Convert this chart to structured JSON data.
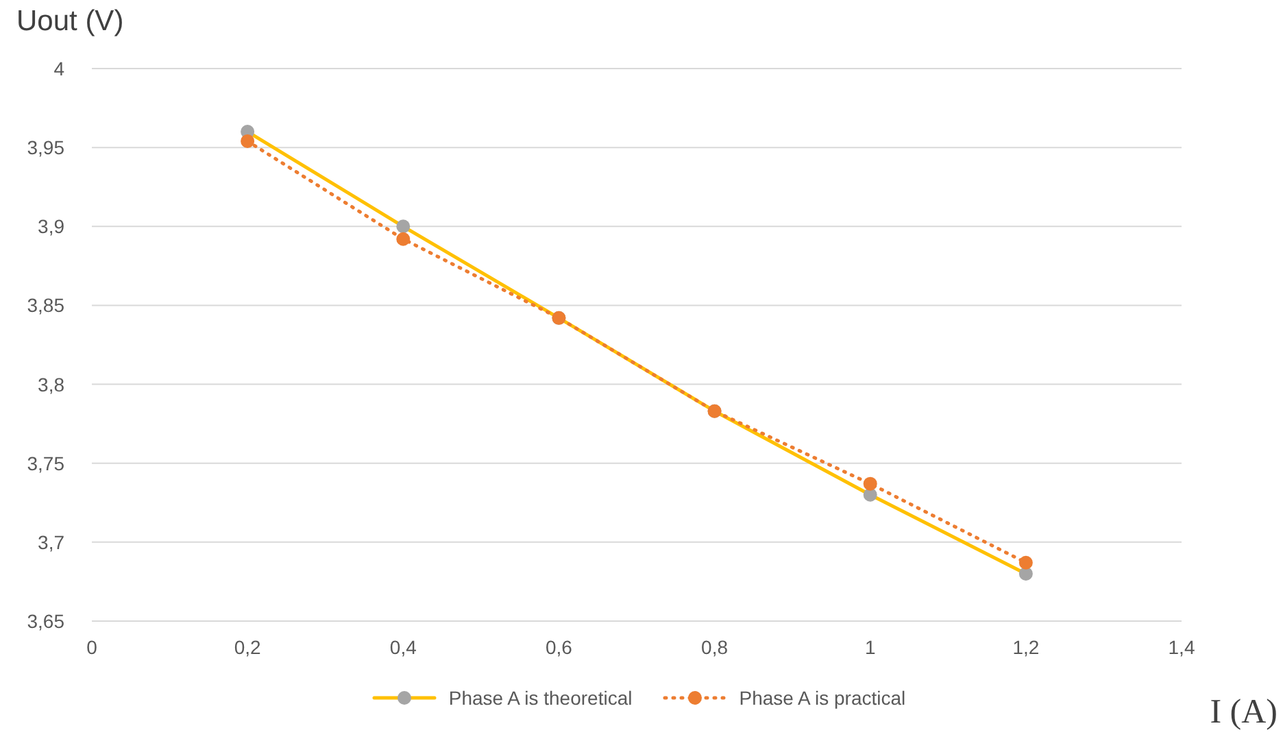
{
  "chart_data": {
    "type": "line",
    "ylabel": "Uout (V)",
    "xlabel": "I (A)",
    "x": [
      0.2,
      0.4,
      0.6,
      0.8,
      1,
      1.2
    ],
    "series": [
      {
        "name": "Phase A is theoretical",
        "color": "#ffc000",
        "line_style": "solid",
        "values": [
          3.96,
          3.9,
          3.842,
          3.783,
          3.73,
          3.68
        ]
      },
      {
        "name": "Phase A is practical",
        "color": "#ed7d31",
        "line_style": "dotted",
        "values": [
          3.954,
          3.892,
          3.842,
          3.783,
          3.737,
          3.687
        ]
      }
    ],
    "xlim": [
      0,
      1.4
    ],
    "xticks": [
      0,
      {
        "value": 0.2,
        "label": "0,2"
      },
      {
        "value": 0.4,
        "label": "0,4"
      },
      {
        "value": 0.6,
        "label": "0,6"
      },
      {
        "value": 0.8,
        "label": "0,8"
      },
      1,
      {
        "value": 1.2,
        "label": "1,2"
      },
      {
        "value": 1.4,
        "label": "1,4"
      }
    ],
    "ylim": [
      3.65,
      4
    ],
    "yticks": [
      {
        "value": 3.65,
        "label": "3,65"
      },
      {
        "value": 3.7,
        "label": "3,7"
      },
      {
        "value": 3.75,
        "label": "3,75"
      },
      {
        "value": 3.8,
        "label": "3,8"
      },
      {
        "value": 3.85,
        "label": "3,85"
      },
      {
        "value": 3.9,
        "label": "3,9"
      },
      {
        "value": 3.95,
        "label": "3,95"
      },
      4
    ],
    "grid": "y",
    "legend": "bottom",
    "marker": "circle"
  }
}
